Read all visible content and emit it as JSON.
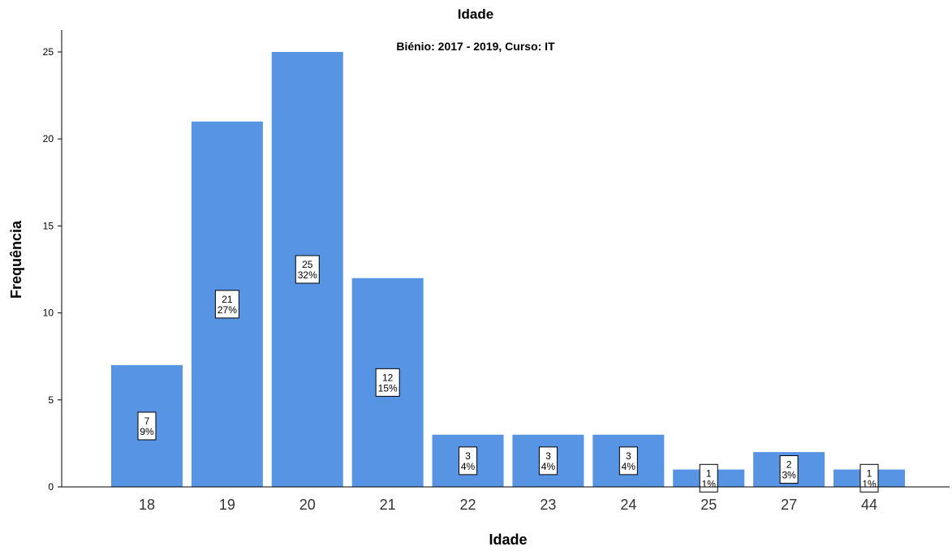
{
  "chart_data": {
    "type": "bar",
    "title": "Idade",
    "subtitle": "Biénio: 2017 - 2019, Curso: IT",
    "xlabel": "Idade",
    "ylabel": "Frequência",
    "categories": [
      "18",
      "19",
      "20",
      "21",
      "22",
      "23",
      "24",
      "25",
      "27",
      "44"
    ],
    "values": [
      7,
      21,
      25,
      12,
      3,
      3,
      3,
      1,
      2,
      1
    ],
    "percent_labels": [
      "9%",
      "27%",
      "32%",
      "15%",
      "4%",
      "4%",
      "4%",
      "1%",
      "3%",
      "1%"
    ],
    "ylim": [
      0,
      26
    ],
    "yticks": [
      0,
      5,
      10,
      15,
      20,
      25
    ],
    "grid": false,
    "bar_color": "#5794e4"
  }
}
